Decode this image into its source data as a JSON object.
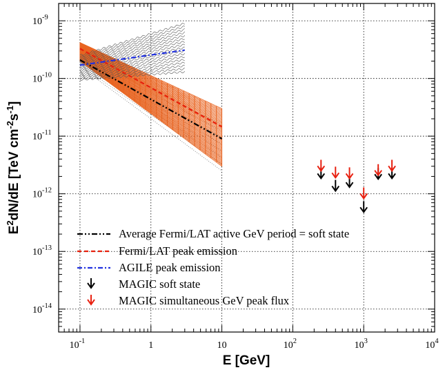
{
  "chart_data": {
    "type": "scatter",
    "title": "",
    "xlabel": "E [GeV]",
    "ylabel_parts": [
      "E",
      "2",
      "dN/dE [TeV cm",
      "-2",
      "s",
      "-1",
      "]"
    ],
    "xscale": "log",
    "yscale": "log",
    "xlim": [
      0.05,
      10000
    ],
    "ylim": [
      4e-15,
      2e-09
    ],
    "grid": true,
    "x_ticks": [
      {
        "value": 0.1,
        "base": "10",
        "exp": "-1"
      },
      {
        "value": 1,
        "text": "1"
      },
      {
        "value": 10,
        "text": "10"
      },
      {
        "value": 100,
        "base": "10",
        "exp": "2"
      },
      {
        "value": 1000,
        "base": "10",
        "exp": "3"
      },
      {
        "value": 10000,
        "base": "10",
        "exp": "4"
      }
    ],
    "y_ticks": [
      {
        "value": 1e-14,
        "base": "10",
        "exp": "-14"
      },
      {
        "value": 1e-13,
        "base": "10",
        "exp": "-13"
      },
      {
        "value": 1e-12,
        "base": "10",
        "exp": "-12"
      },
      {
        "value": 1e-11,
        "base": "10",
        "exp": "-11"
      },
      {
        "value": 1e-10,
        "base": "10",
        "exp": "-10"
      },
      {
        "value": 1e-09,
        "base": "10",
        "exp": "-9"
      }
    ],
    "legend_position": "bottom-left",
    "series": [
      {
        "name": "Average Fermi/LAT active GeV period = soft state",
        "kind": "line",
        "color": "#000000",
        "dash": "dash-dot-dot",
        "x": [
          0.1,
          10
        ],
        "y": [
          2.1e-10,
          9e-12
        ],
        "band": {
          "x": [
            0.1,
            10
          ],
          "low": [
            1.6e-10,
            2.5e-12
          ],
          "high": [
            2.6e-10,
            1.6e-11
          ],
          "color": "#777777",
          "style": "dotted"
        }
      },
      {
        "name": "Fermi/LAT peak emission",
        "kind": "line",
        "color": "#e8200c",
        "dash": "dashed",
        "x": [
          0.1,
          10
        ],
        "y": [
          3.3e-10,
          1.45e-11
        ],
        "band": {
          "x": [
            0.1,
            10
          ],
          "low": [
            2e-10,
            3e-12
          ],
          "high": [
            4.2e-10,
            3e-11
          ],
          "color": "#e8631f",
          "style": "hatched"
        }
      },
      {
        "name": "AGILE peak emission",
        "kind": "line",
        "color": "#2030e0",
        "dash": "dash-dot",
        "x": [
          0.1,
          3
        ],
        "y": [
          1.7e-10,
          3.1e-10
        ],
        "band": {
          "x": [
            0.1,
            3
          ],
          "low": [
            9.5e-11,
            1.3e-10
          ],
          "high": [
            2.5e-10,
            9e-10
          ],
          "color": "#555555",
          "style": "wavy"
        }
      },
      {
        "name": "MAGIC soft state",
        "kind": "upper_limit",
        "color": "#000000",
        "x": [
          250,
          400,
          630,
          1000,
          1600,
          2500
        ],
        "y": [
          1.85e-12,
          1.12e-12,
          1.3e-12,
          4.8e-13,
          1.8e-12,
          1.85e-12
        ]
      },
      {
        "name": "MAGIC simultaneous GeV peak flux",
        "kind": "upper_limit",
        "color": "#e82010",
        "x": [
          250,
          400,
          630,
          1000,
          1600,
          2500
        ],
        "y": [
          2.5e-12,
          1.9e-12,
          1.85e-12,
          8.3e-13,
          2.1e-12,
          2.5e-12
        ]
      }
    ]
  }
}
